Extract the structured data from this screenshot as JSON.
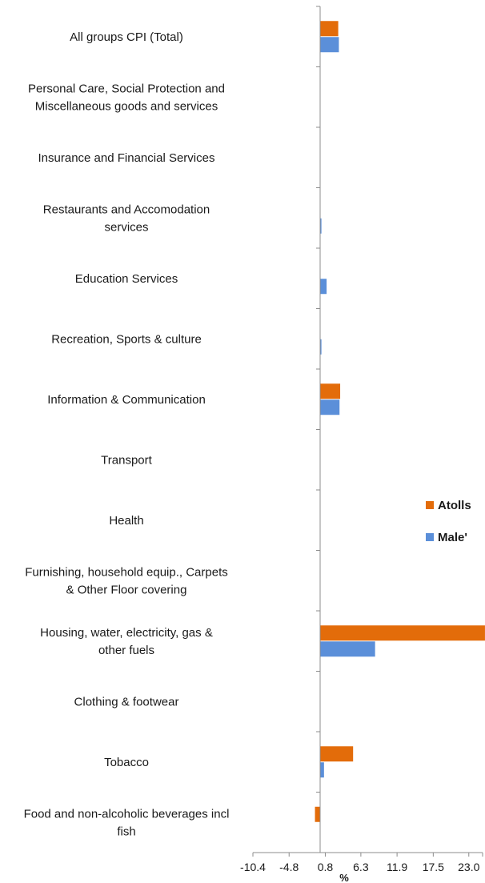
{
  "chart_data": {
    "type": "bar",
    "orientation": "horizontal",
    "categories": [
      "All groups CPI (Total)",
      "Personal Care, Social Protection and Miscellaneous goods and services",
      "Insurance and Financial Services",
      "Restaurants and Accomodation services",
      "Education Services",
      "Recreation, Sports & culture",
      "Information & Communication",
      "Transport",
      "Health",
      "Furnishing, household equip., Carpets & Other Floor covering",
      "Housing, water, electricity, gas & other fuels",
      "Clothing & footwear",
      "Tobacco",
      "Food and non-alcoholic beverages incl fish"
    ],
    "category_lines": [
      [
        "All groups CPI (Total)"
      ],
      [
        "Personal Care, Social Protection and",
        "Miscellaneous goods and services"
      ],
      [
        "Insurance and Financial Services"
      ],
      [
        "Restaurants and Accomodation",
        "services"
      ],
      [
        "Education Services"
      ],
      [
        "Recreation, Sports & culture"
      ],
      [
        "Information & Communication"
      ],
      [
        "Transport"
      ],
      [
        "Health"
      ],
      [
        "Furnishing, household equip., Carpets",
        "& Other Floor covering"
      ],
      [
        "Housing, water, electricity, gas &",
        "other fuels"
      ],
      [
        "Clothing & footwear"
      ],
      [
        "Tobacco"
      ],
      [
        "Food and non-alcoholic beverages incl",
        "fish"
      ]
    ],
    "series": [
      {
        "name": "Atolls",
        "color": "#E36C0A",
        "values": [
          2.8,
          0,
          0,
          0,
          0,
          0,
          3.1,
          0,
          0,
          0,
          25.5,
          0,
          5.1,
          -0.8
        ]
      },
      {
        "name": "Male'",
        "color": "#5B8FD9",
        "values": [
          2.9,
          0,
          0,
          0.2,
          1.0,
          0.2,
          3.0,
          0,
          0,
          0,
          8.5,
          0,
          0.6,
          0
        ]
      }
    ],
    "xlim": [
      -10.4,
      26.0
    ],
    "xticks": [
      "-10.4",
      "-4.8",
      "0.8",
      "6.3",
      "11.9",
      "17.5",
      "23.0"
    ],
    "xlabel": "%",
    "ylabel": "",
    "title": "",
    "grid": false,
    "legend_position": "right"
  }
}
